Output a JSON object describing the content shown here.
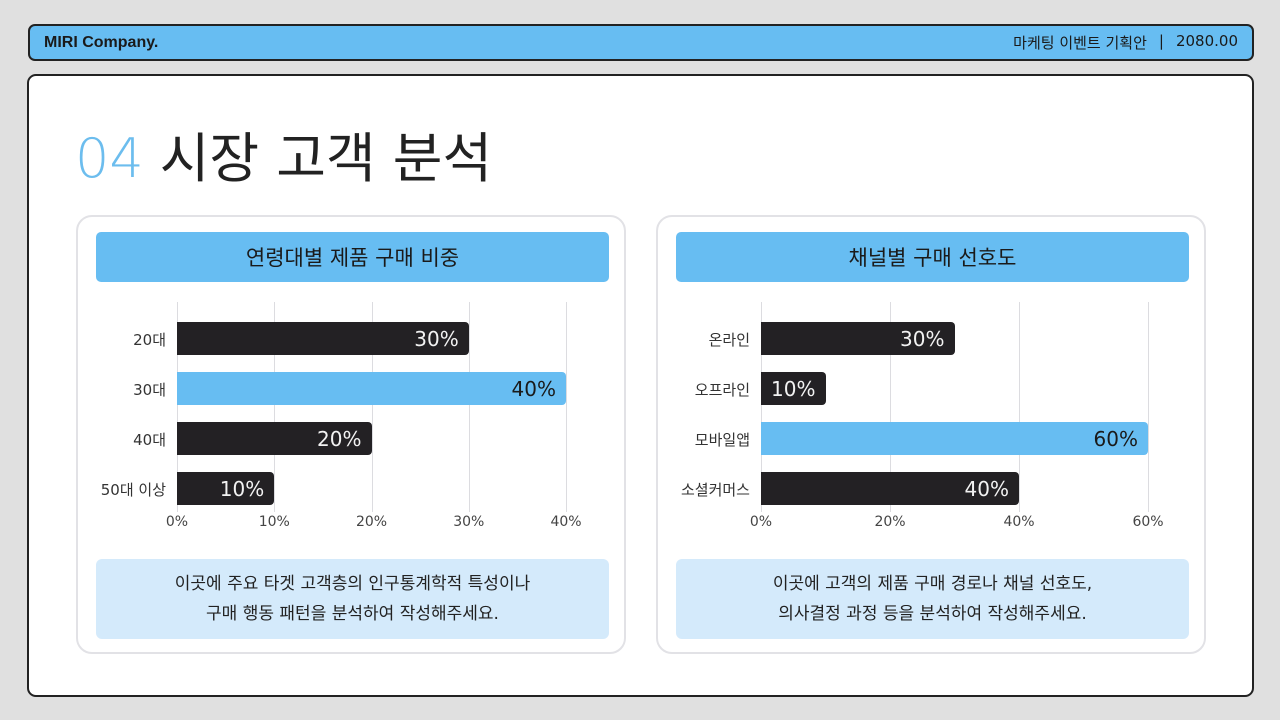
{
  "header": {
    "brand": "MIRI Company.",
    "doc_title": "마케팅 이벤트 기획안",
    "separator": "|",
    "year": "2080.00"
  },
  "page": {
    "section_number": "04",
    "section_title": "시장 고객 분석"
  },
  "panels": [
    {
      "title": "연령대별 제품 구매 비중",
      "note_lines": [
        "이곳에 주요 타겟 고객층의 인구통계학적 특성이나",
        "구매 행동 패턴을 분석하여 작성해주세요."
      ]
    },
    {
      "title": "채널별 구매 선호도",
      "note_lines": [
        "이곳에 고객의 제품 구매 경로나 채널 선호도,",
        "의사결정 과정 등을 분석하여 작성해주세요."
      ]
    }
  ],
  "colors": {
    "accent": "#67bdf2",
    "dark_bar": "#232124",
    "note_bg": "#d4eafb"
  },
  "chart_data": [
    {
      "type": "bar",
      "orientation": "horizontal",
      "title": "연령대별 제품 구매 비중",
      "categories": [
        "20대",
        "30대",
        "40대",
        "50대 이상"
      ],
      "values": [
        30,
        40,
        20,
        10
      ],
      "value_labels": [
        "30%",
        "40%",
        "20%",
        "10%"
      ],
      "highlight_index": 1,
      "xlim": [
        0,
        40
      ],
      "xticks": [
        "0%",
        "10%",
        "20%",
        "30%",
        "40%"
      ],
      "grid": true,
      "xlabel": "",
      "ylabel": ""
    },
    {
      "type": "bar",
      "orientation": "horizontal",
      "title": "채널별 구매 선호도",
      "categories": [
        "온라인",
        "오프라인",
        "모바일앱",
        "소셜커머스"
      ],
      "values": [
        30,
        10,
        60,
        40
      ],
      "value_labels": [
        "30%",
        "10%",
        "60%",
        "40%"
      ],
      "highlight_index": 2,
      "xlim": [
        0,
        60
      ],
      "xticks": [
        "0%",
        "20%",
        "40%",
        "60%"
      ],
      "grid": true,
      "xlabel": "",
      "ylabel": ""
    }
  ]
}
